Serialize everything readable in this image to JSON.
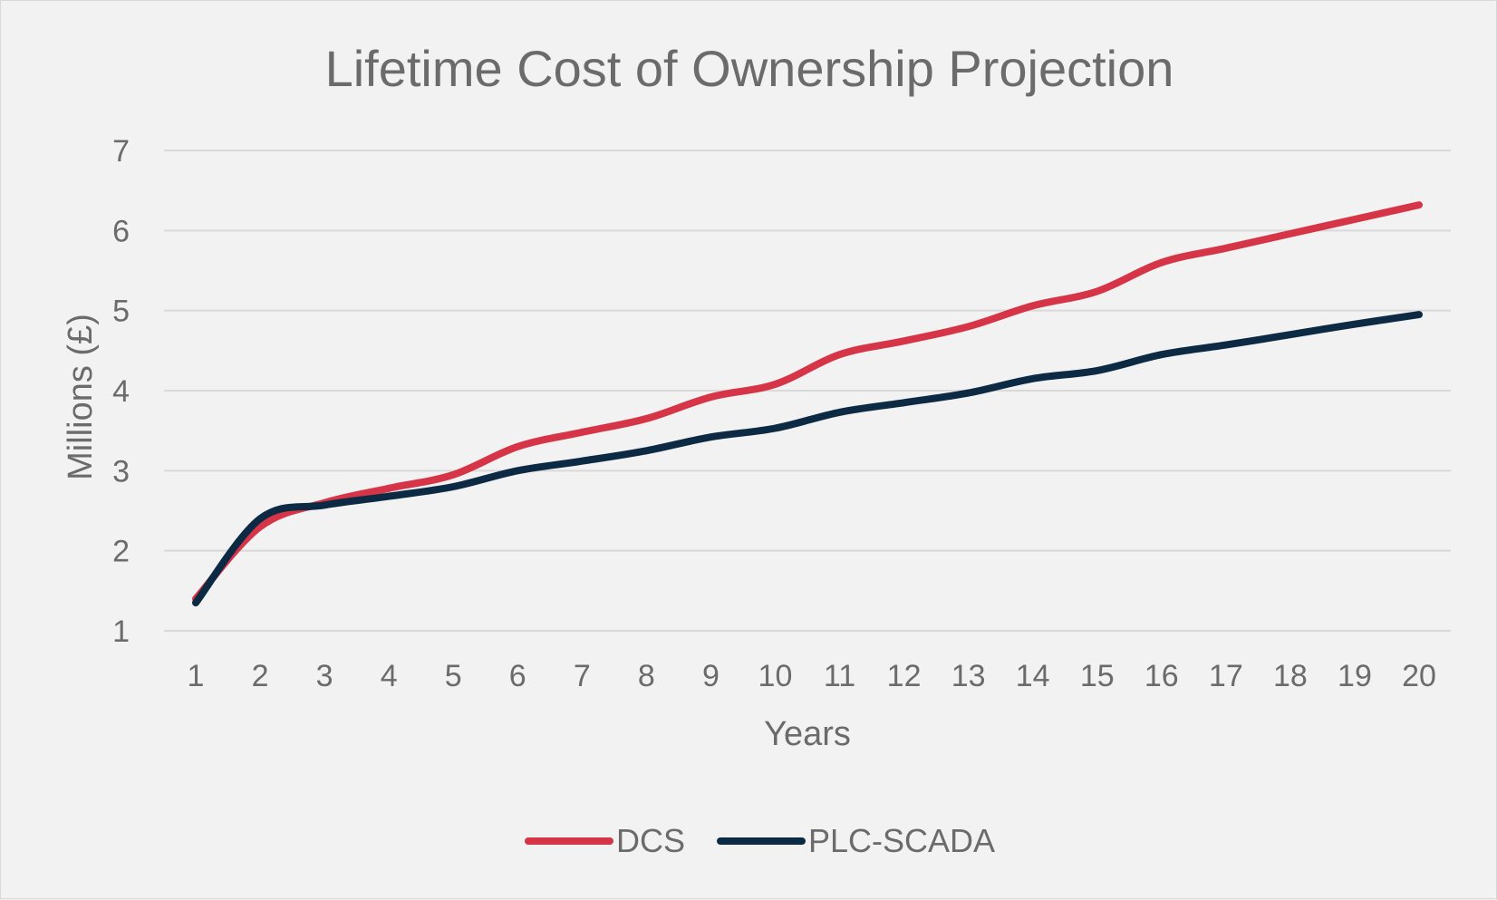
{
  "chart_data": {
    "type": "line",
    "title": "Lifetime Cost of Ownership Projection",
    "xlabel": "Years",
    "ylabel": "Millions (£)",
    "ylim": [
      1,
      7
    ],
    "yticks": [
      "1",
      "2",
      "3",
      "4",
      "5",
      "6",
      "7"
    ],
    "categories": [
      "1",
      "2",
      "3",
      "4",
      "5",
      "6",
      "7",
      "8",
      "9",
      "10",
      "11",
      "12",
      "13",
      "14",
      "15",
      "16",
      "17",
      "18",
      "19",
      "20"
    ],
    "grid": true,
    "legend_position": "bottom",
    "series": [
      {
        "name": "DCS",
        "color": "#d63447",
        "values": [
          1.4,
          2.3,
          2.6,
          2.78,
          2.95,
          3.3,
          3.48,
          3.65,
          3.92,
          4.08,
          4.45,
          4.62,
          4.8,
          5.06,
          5.24,
          5.6,
          5.78,
          5.96,
          6.14,
          6.32
        ]
      },
      {
        "name": "PLC-SCADA",
        "color": "#0d2a44",
        "values": [
          1.35,
          2.4,
          2.57,
          2.68,
          2.8,
          3.0,
          3.12,
          3.25,
          3.42,
          3.53,
          3.73,
          3.85,
          3.97,
          4.15,
          4.25,
          4.45,
          4.57,
          4.7,
          4.83,
          4.95
        ]
      }
    ]
  }
}
